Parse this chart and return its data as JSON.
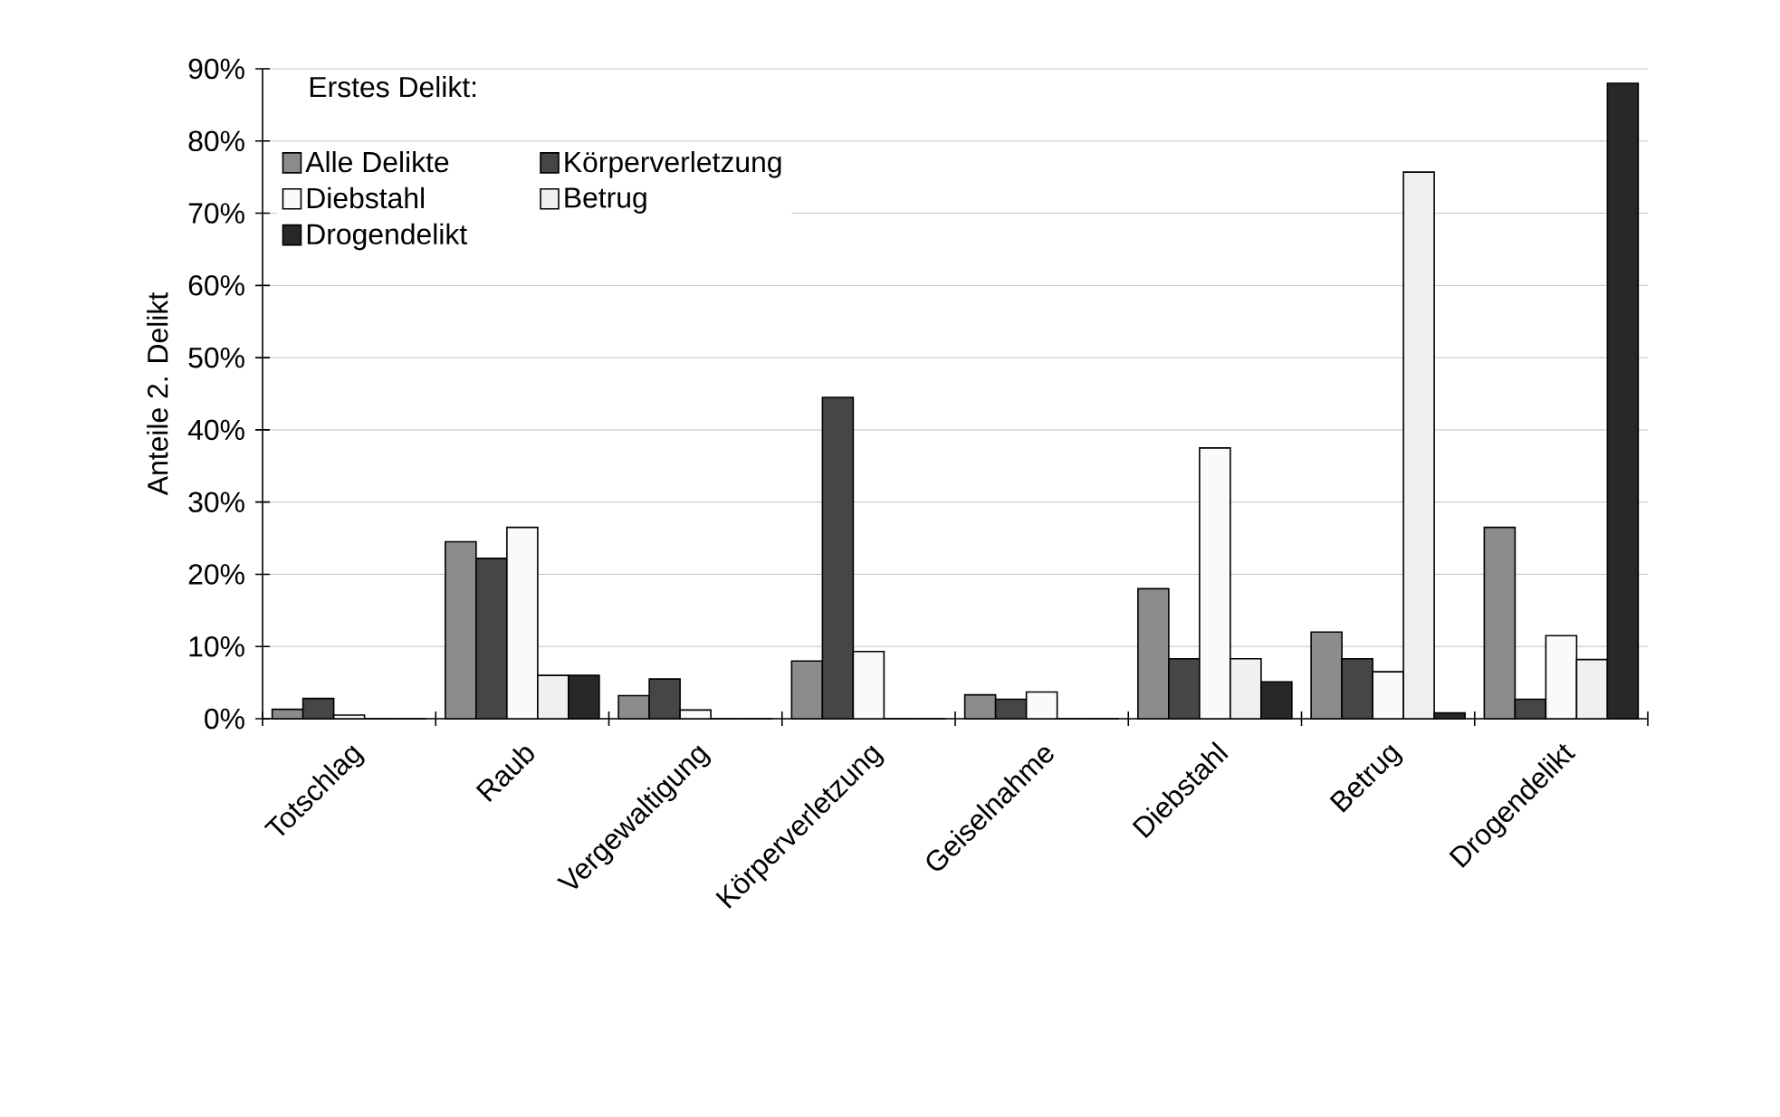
{
  "chart_data": {
    "type": "bar",
    "ylabel": "Anteile 2. Delikt",
    "legend_title": "Erstes Delikt:",
    "legend": "top left",
    "grid": "y",
    "categories": [
      "Totschlag",
      "Raub",
      "Vergewaltigung",
      "Körperverletzung",
      "Geiselnahme",
      "Diebstahl",
      "Betrug",
      "Drogendelikt"
    ],
    "ylim": [
      0,
      90
    ],
    "yticks": [
      {
        "value": 0,
        "label": "0%"
      },
      {
        "value": 10,
        "label": "10%"
      },
      {
        "value": 20,
        "label": "20%"
      },
      {
        "value": 30,
        "label": "30%"
      },
      {
        "value": 40,
        "label": "40%"
      },
      {
        "value": 50,
        "label": "50%"
      },
      {
        "value": 60,
        "label": "60%"
      },
      {
        "value": 70,
        "label": "70%"
      },
      {
        "value": 80,
        "label": "80%"
      },
      {
        "value": 90,
        "label": "90%"
      }
    ],
    "series": [
      {
        "name": "Alle Delikte",
        "color": "#8c8c8c",
        "values": [
          1.3,
          24.5,
          3.2,
          8,
          3.3,
          18,
          12,
          26.5
        ]
      },
      {
        "name": "Körperverletzung",
        "color": "#464646",
        "values": [
          2.8,
          22.2,
          5.5,
          44.5,
          2.7,
          8.3,
          8.3,
          2.7
        ]
      },
      {
        "name": "Diebstahl",
        "color": "#fafafa",
        "values": [
          0.5,
          26.5,
          1.2,
          9.3,
          3.7,
          37.5,
          6.5,
          11.5
        ]
      },
      {
        "name": "Betrug",
        "color": "#f0f0f0",
        "values": [
          0,
          6,
          0,
          0,
          0,
          8.3,
          75.7,
          8.2
        ]
      },
      {
        "name": "Drogendelikt",
        "color": "#282828",
        "values": [
          0,
          6,
          0,
          0,
          0,
          5.1,
          0.8,
          88
        ]
      }
    ]
  }
}
